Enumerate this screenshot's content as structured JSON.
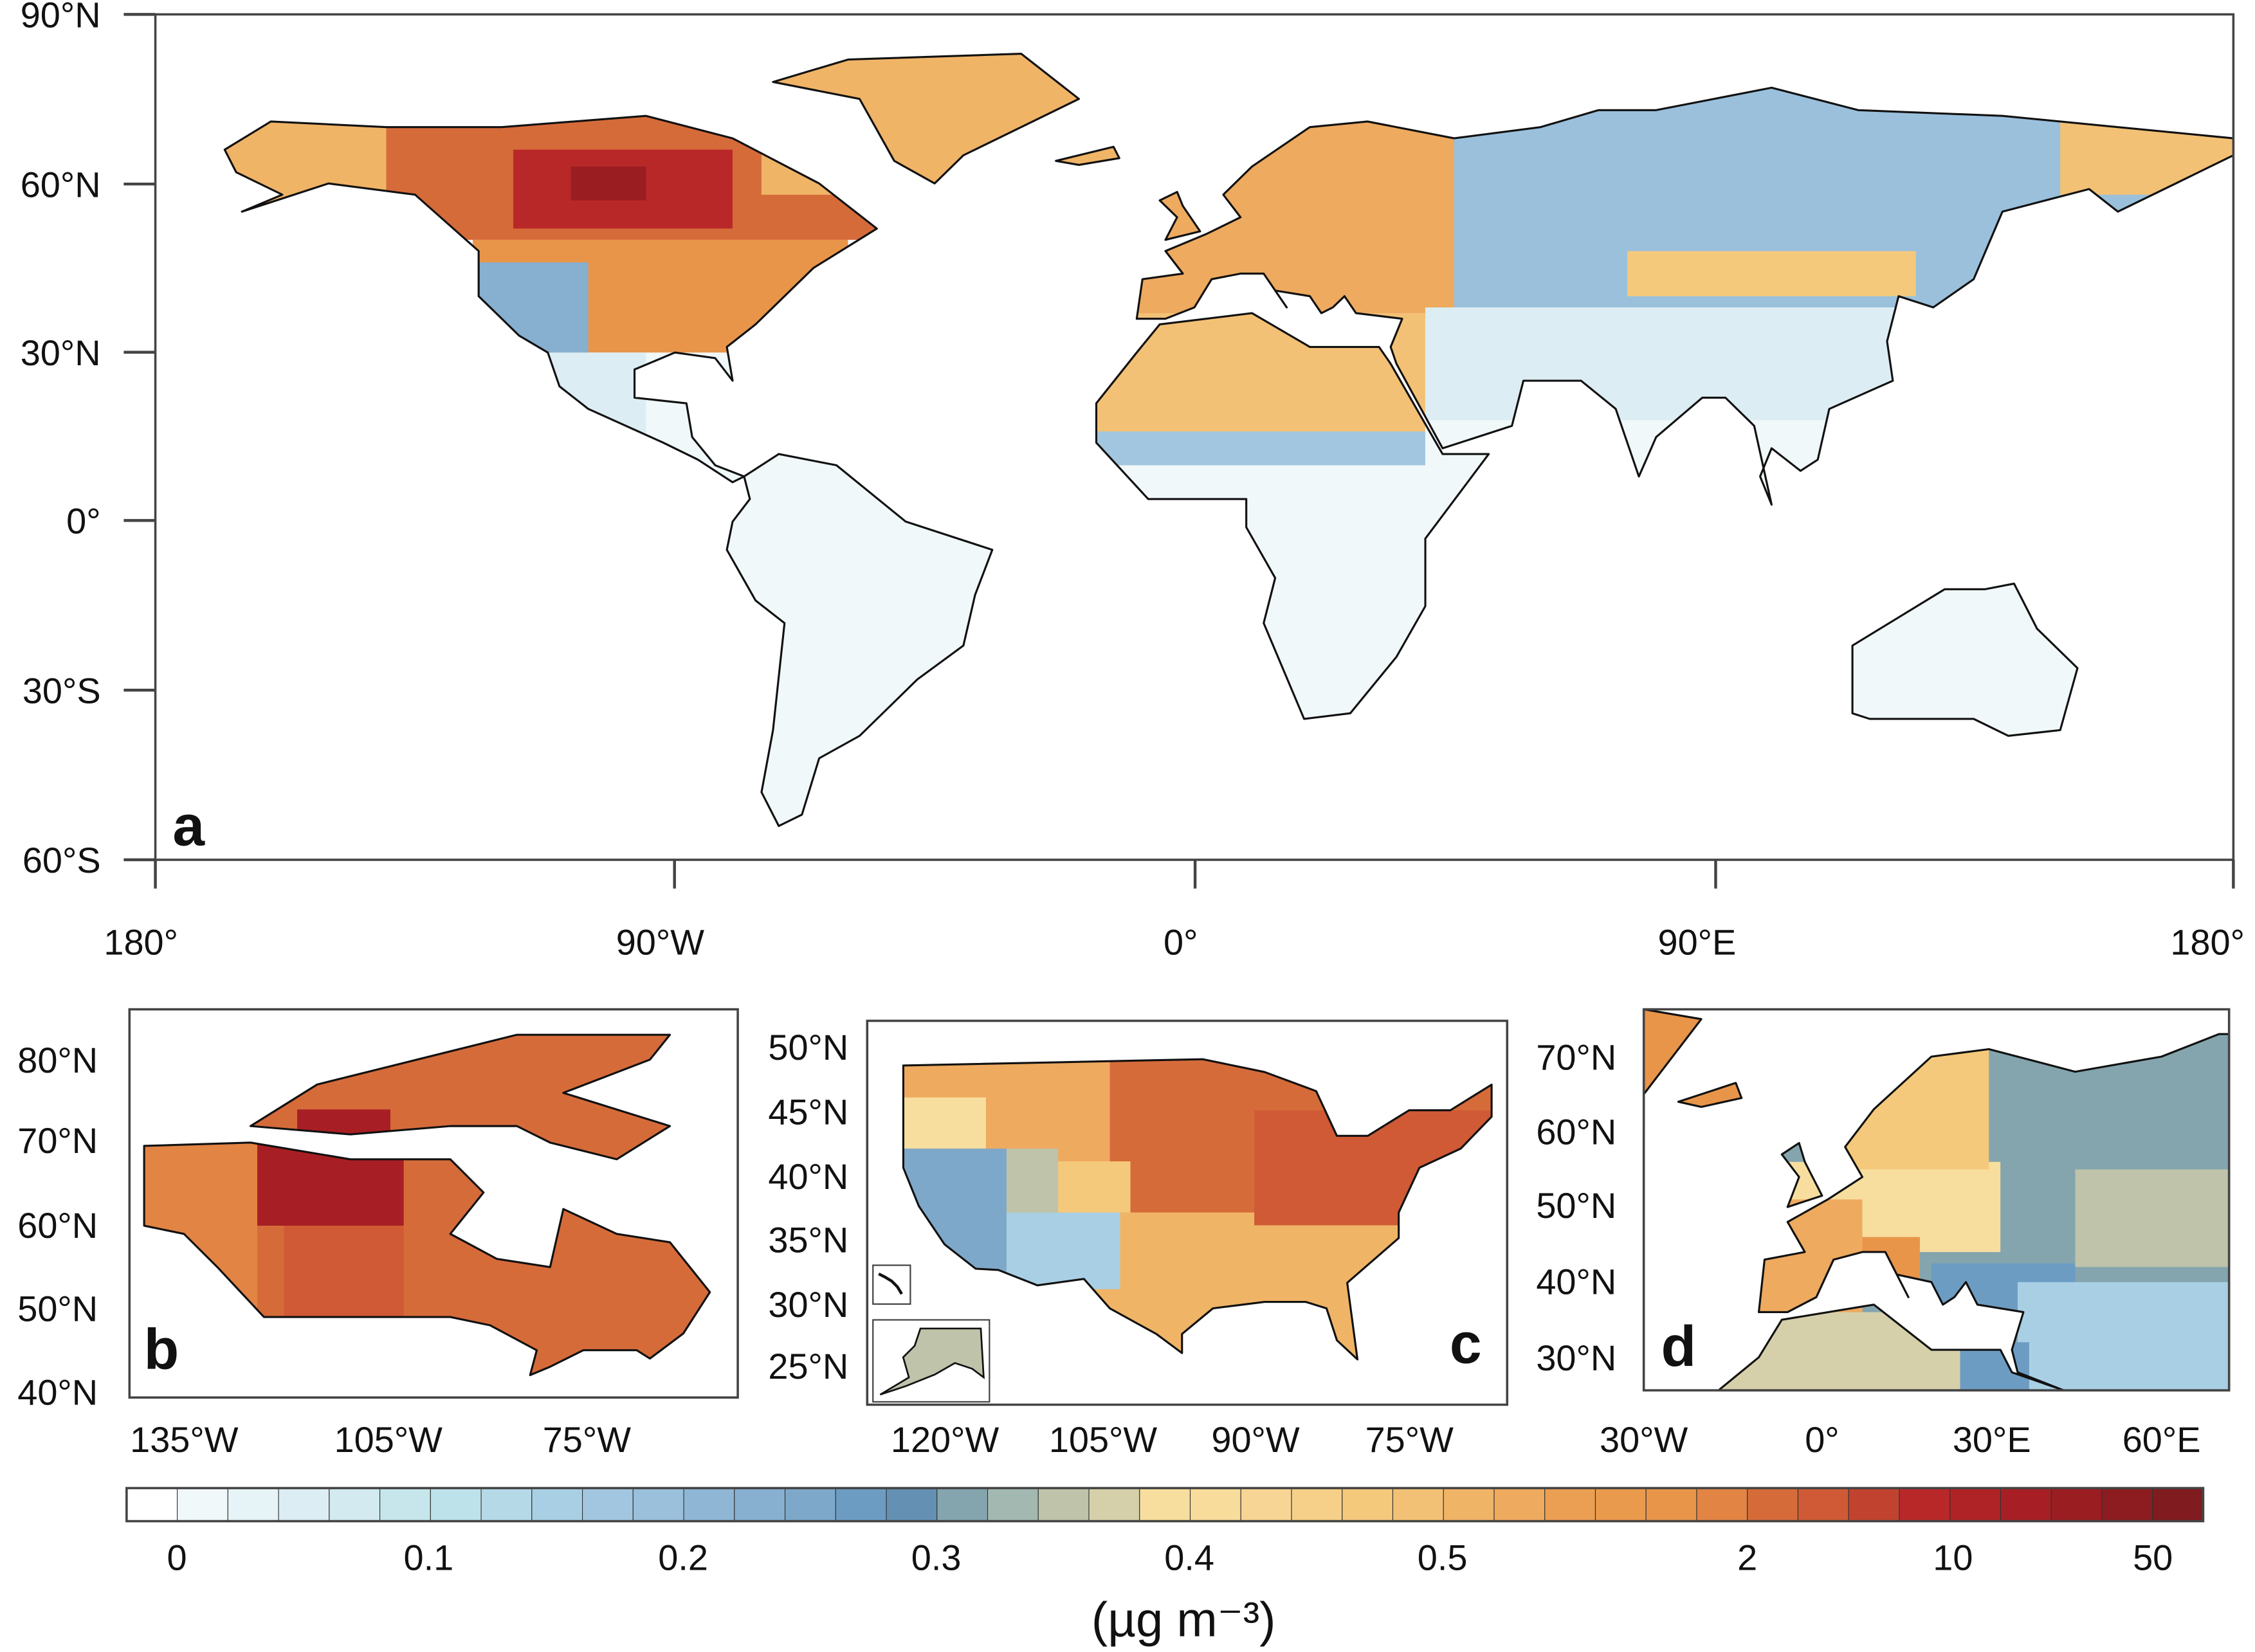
{
  "panels": {
    "a": {
      "label": "a",
      "lat_ticks": [
        "90°N",
        "60°N",
        "30°N",
        "0°",
        "30°S",
        "60°S"
      ],
      "lon_ticks": [
        "180°",
        "90°W",
        "0°",
        "90°E",
        "180°"
      ]
    },
    "b": {
      "label": "b",
      "lat_ticks": [
        "80°N",
        "70°N",
        "60°N",
        "50°N",
        "40°N"
      ],
      "lon_ticks": [
        "135°W",
        "105°W",
        "75°W"
      ]
    },
    "c": {
      "label": "c",
      "lat_ticks": [
        "50°N",
        "45°N",
        "40°N",
        "35°N",
        "30°N",
        "25°N"
      ],
      "lon_ticks": [
        "120°W",
        "105°W",
        "90°W",
        "75°W"
      ]
    },
    "d": {
      "label": "d",
      "lat_ticks": [
        "70°N",
        "60°N",
        "50°N",
        "40°N",
        "30°N"
      ],
      "lon_ticks": [
        "30°W",
        "0°",
        "30°E",
        "60°E"
      ]
    }
  },
  "colorbar": {
    "tick_labels": [
      "0",
      "0.1",
      "0.2",
      "0.3",
      "0.4",
      "0.5",
      "2",
      "10",
      "50"
    ],
    "unit": "(µg m⁻³)",
    "colors": [
      "#ffffff",
      "#f0f8fa",
      "#e6f3f7",
      "#dcedf3",
      "#d2eaf0",
      "#c6e6ec",
      "#bde2ea",
      "#b5d9e7",
      "#a9cfe4",
      "#a2c6df",
      "#9ac0dc",
      "#8fb6d4",
      "#87afcf",
      "#7ea8c9",
      "#6d9cc3",
      "#6490b3",
      "#84a5ae",
      "#a2b8b1",
      "#bec3a9",
      "#d6d0aa",
      "#f7de9e",
      "#f8dc9c",
      "#f7d594",
      "#f6cf88",
      "#f5c97c",
      "#f3c175",
      "#f0b467",
      "#eeaa5f",
      "#eb9f53",
      "#ea9a4c",
      "#e8954a",
      "#e28444",
      "#d66b3a",
      "#cf5a35",
      "#c1432f",
      "#b92829",
      "#af2326",
      "#a71f24",
      "#9a1d22",
      "#8c1c20",
      "#801b20"
    ]
  }
}
